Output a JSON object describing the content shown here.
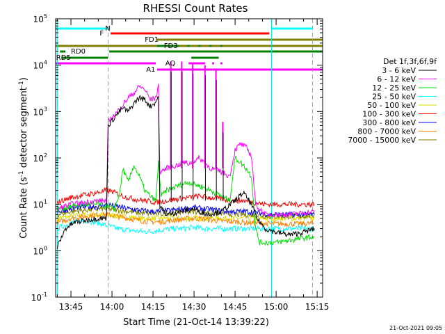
{
  "chart_data": {
    "type": "line",
    "title": "RHESSI Count Rates",
    "xlabel": "Start Time (21-Oct-14 13:39:22)",
    "ylabel_main": "Count Rate (s",
    "ylabel_sup1": "-1",
    "ylabel_mid": " detector segment",
    "ylabel_sup2": "-1",
    "ylabel_end": ")",
    "y_scale": "log",
    "ylim_exp": [
      -1,
      5
    ],
    "y_ticks": [
      {
        "exp": -1,
        "label": "10",
        "sup": "-1"
      },
      {
        "exp": 0,
        "label": "10",
        "sup": "0"
      },
      {
        "exp": 1,
        "label": "10",
        "sup": "1"
      },
      {
        "exp": 2,
        "label": "10",
        "sup": "2"
      },
      {
        "exp": 3,
        "label": "10",
        "sup": "3"
      },
      {
        "exp": 4,
        "label": "10",
        "sup": "4"
      },
      {
        "exp": 5,
        "label": "10",
        "sup": "5"
      }
    ],
    "x_ticks": [
      "13:45",
      "14:00",
      "14:15",
      "14:30",
      "14:45",
      "15:00",
      "15:15"
    ],
    "x_tick_minutes": [
      45,
      60,
      75,
      90,
      105,
      120,
      135
    ],
    "xlim_minutes": [
      39.4,
      137.0
    ],
    "legend_title": "Det 1f,3f,6f,9f",
    "series": [
      {
        "name": "3 - 6 keV",
        "color": "#000000",
        "values": [
          [
            40,
            1.2
          ],
          [
            43,
            3
          ],
          [
            46,
            4
          ],
          [
            50,
            4.5
          ],
          [
            55,
            5
          ],
          [
            58,
            5
          ],
          [
            58.6,
            500
          ],
          [
            62,
            900
          ],
          [
            64,
            1200
          ],
          [
            66,
            1000
          ],
          [
            68,
            1500
          ],
          [
            70,
            2000
          ],
          [
            72,
            1800
          ],
          [
            74,
            1300
          ],
          [
            76,
            1600
          ],
          [
            77,
            2200
          ],
          [
            77.5,
            9
          ],
          [
            80,
            6
          ],
          [
            85,
            7
          ],
          [
            90,
            8
          ],
          [
            95,
            6
          ],
          [
            100,
            7
          ],
          [
            105,
            12
          ],
          [
            108,
            18
          ],
          [
            111,
            10
          ],
          [
            113,
            5
          ],
          [
            116,
            3
          ],
          [
            120,
            2.5
          ],
          [
            125,
            2.2
          ],
          [
            130,
            2.5
          ],
          [
            134,
            3
          ]
        ]
      },
      {
        "name": "6 - 12 keV",
        "color": "#ff00ff",
        "values": [
          [
            40,
            8
          ],
          [
            45,
            10
          ],
          [
            50,
            11
          ],
          [
            55,
            12
          ],
          [
            58,
            12
          ],
          [
            58.6,
            600
          ],
          [
            62,
            1000
          ],
          [
            64,
            1400
          ],
          [
            66,
            2000
          ],
          [
            68,
            2500
          ],
          [
            70,
            3500
          ],
          [
            72,
            3000
          ],
          [
            74,
            1800
          ],
          [
            76,
            2000
          ],
          [
            77,
            3500
          ],
          [
            77.5,
            50
          ],
          [
            80,
            60
          ],
          [
            84,
            70
          ],
          [
            86,
            80
          ],
          [
            88,
            75
          ],
          [
            92,
            100
          ],
          [
            96,
            60
          ],
          [
            100,
            50
          ],
          [
            103,
            40
          ],
          [
            105,
            150
          ],
          [
            107,
            200
          ],
          [
            109,
            170
          ],
          [
            111,
            110
          ],
          [
            112.5,
            10
          ],
          [
            116,
            6
          ],
          [
            125,
            6
          ],
          [
            134,
            7
          ]
        ]
      },
      {
        "name": "12 - 25 keV",
        "color": "#00dd00",
        "values": [
          [
            40,
            8
          ],
          [
            45,
            9
          ],
          [
            50,
            10
          ],
          [
            55,
            10
          ],
          [
            58,
            9
          ],
          [
            61,
            8
          ],
          [
            63,
            20
          ],
          [
            64,
            60
          ],
          [
            65,
            40
          ],
          [
            66,
            30
          ],
          [
            68,
            70
          ],
          [
            70,
            40
          ],
          [
            72,
            20
          ],
          [
            74,
            15
          ],
          [
            76,
            12
          ],
          [
            77,
            80
          ],
          [
            78,
            15
          ],
          [
            80,
            20
          ],
          [
            84,
            25
          ],
          [
            88,
            30
          ],
          [
            92,
            25
          ],
          [
            96,
            20
          ],
          [
            100,
            15
          ],
          [
            103,
            12
          ],
          [
            105,
            100
          ],
          [
            107,
            80
          ],
          [
            109,
            60
          ],
          [
            111,
            40
          ],
          [
            112.5,
            3
          ],
          [
            114,
            1.5
          ],
          [
            120,
            1.5
          ],
          [
            128,
            1.8
          ],
          [
            134,
            2
          ]
        ]
      },
      {
        "name": "25 - 50 keV",
        "color": "#00ffff",
        "values": [
          [
            40,
            3
          ],
          [
            45,
            4
          ],
          [
            50,
            4.5
          ],
          [
            55,
            4
          ],
          [
            58,
            3.5
          ],
          [
            62,
            3
          ],
          [
            66,
            2.8
          ],
          [
            70,
            2.6
          ],
          [
            74,
            2.6
          ],
          [
            78,
            2.8
          ],
          [
            82,
            3
          ],
          [
            86,
            3
          ],
          [
            90,
            3.2
          ],
          [
            94,
            3
          ],
          [
            98,
            3
          ],
          [
            102,
            3
          ],
          [
            106,
            3
          ],
          [
            110,
            3
          ],
          [
            113,
            3
          ],
          [
            118,
            3
          ],
          [
            124,
            3
          ],
          [
            130,
            3
          ],
          [
            134,
            3
          ]
        ]
      },
      {
        "name": "50 - 100 keV",
        "color": "#dddd00",
        "values": [
          [
            40,
            5
          ],
          [
            50,
            6
          ],
          [
            58,
            6
          ],
          [
            70,
            5
          ],
          [
            80,
            5
          ],
          [
            90,
            5
          ],
          [
            100,
            5
          ],
          [
            110,
            5
          ],
          [
            120,
            5
          ],
          [
            134,
            5
          ]
        ]
      },
      {
        "name": "100 - 300 keV",
        "color": "#ff0000",
        "values": [
          [
            40,
            11
          ],
          [
            45,
            14
          ],
          [
            50,
            16
          ],
          [
            55,
            18
          ],
          [
            58,
            20
          ],
          [
            60,
            19
          ],
          [
            64,
            15
          ],
          [
            68,
            13
          ],
          [
            72,
            12
          ],
          [
            76,
            11
          ],
          [
            80,
            12
          ],
          [
            84,
            13
          ],
          [
            88,
            14
          ],
          [
            92,
            15
          ],
          [
            96,
            14
          ],
          [
            100,
            13
          ],
          [
            104,
            12
          ],
          [
            108,
            12
          ],
          [
            112,
            11
          ],
          [
            116,
            10
          ],
          [
            120,
            10
          ],
          [
            126,
            10
          ],
          [
            134,
            10
          ]
        ]
      },
      {
        "name": "300 - 800 keV",
        "color": "#0000ff",
        "values": [
          [
            40,
            7
          ],
          [
            45,
            8
          ],
          [
            50,
            9
          ],
          [
            55,
            9
          ],
          [
            58,
            10
          ],
          [
            62,
            9
          ],
          [
            66,
            8
          ],
          [
            70,
            7.5
          ],
          [
            74,
            7
          ],
          [
            78,
            7
          ],
          [
            82,
            7.5
          ],
          [
            86,
            8
          ],
          [
            90,
            8.5
          ],
          [
            94,
            8
          ],
          [
            98,
            7.5
          ],
          [
            102,
            7
          ],
          [
            106,
            7
          ],
          [
            110,
            7
          ],
          [
            114,
            6.5
          ],
          [
            118,
            6
          ],
          [
            124,
            6
          ],
          [
            130,
            6
          ],
          [
            134,
            6
          ]
        ]
      },
      {
        "name": "800 - 7000 keV",
        "color": "#ff8000",
        "values": [
          [
            40,
            4
          ],
          [
            45,
            5
          ],
          [
            50,
            5.5
          ],
          [
            55,
            6
          ],
          [
            58,
            6
          ],
          [
            62,
            5.5
          ],
          [
            66,
            5
          ],
          [
            70,
            4.5
          ],
          [
            74,
            4.2
          ],
          [
            78,
            4.2
          ],
          [
            82,
            4.5
          ],
          [
            86,
            4.8
          ],
          [
            90,
            5
          ],
          [
            94,
            4.8
          ],
          [
            98,
            4.5
          ],
          [
            102,
            4.3
          ],
          [
            106,
            4.2
          ],
          [
            110,
            4
          ],
          [
            114,
            3.9
          ],
          [
            118,
            3.8
          ],
          [
            124,
            3.8
          ],
          [
            130,
            3.8
          ],
          [
            134,
            3.9
          ]
        ]
      },
      {
        "name": "7000 - 15000 keV",
        "color": "#808000",
        "values": [
          [
            40,
            6
          ],
          [
            45,
            7
          ],
          [
            50,
            7.5
          ],
          [
            55,
            8
          ],
          [
            58,
            8
          ],
          [
            62,
            7.5
          ],
          [
            66,
            7
          ],
          [
            70,
            6.5
          ],
          [
            74,
            6.3
          ],
          [
            78,
            6.3
          ],
          [
            82,
            6.5
          ],
          [
            86,
            7
          ],
          [
            90,
            7
          ],
          [
            94,
            6.8
          ],
          [
            98,
            6.5
          ],
          [
            102,
            6.3
          ],
          [
            106,
            6
          ],
          [
            110,
            6
          ],
          [
            114,
            5.8
          ],
          [
            118,
            5.5
          ],
          [
            124,
            5.5
          ],
          [
            130,
            5.6
          ],
          [
            134,
            5.8
          ]
        ]
      }
    ],
    "spikes": [
      {
        "t": 81.5,
        "peak": 12000,
        "color": "#ff00ff"
      },
      {
        "t": 85.5,
        "peak": 12000,
        "color": "#ff00ff"
      },
      {
        "t": 89.5,
        "peak": 11000,
        "color": "#ff00ff"
      },
      {
        "t": 94,
        "peak": 10000,
        "color": "#ff00ff"
      },
      {
        "t": 98,
        "peak": 8000,
        "color": "#ff00ff"
      },
      {
        "t": 100.5,
        "peak": 600,
        "color": "#ff00ff"
      }
    ],
    "vlines": [
      {
        "t": 40.0,
        "style": "solid"
      },
      {
        "t": 58.6,
        "style": "dashed"
      },
      {
        "t": 118.3,
        "style": "solid"
      },
      {
        "t": 133.3,
        "style": "dashed"
      }
    ],
    "flag_bars": [
      {
        "label": "N",
        "color": "#00ffff",
        "segments": [
          [
            39.4,
            58.6
          ],
          [
            118.3,
            133.3
          ]
        ],
        "level": 41,
        "label_t": 57.5,
        "label_color": "#00ffff"
      },
      {
        "label": "F",
        "color": "#ff0000",
        "segments": [
          [
            59.5,
            117.5
          ]
        ],
        "level": 48,
        "label_t": 55.5,
        "label_color": "#ff0000"
      },
      {
        "label": "FD1",
        "color": "#808000",
        "segments": [
          [
            76.5,
            137
          ]
        ],
        "level": 57,
        "label_t": 72,
        "label_color": "#808000"
      },
      {
        "label": "",
        "color": "#808000",
        "segments": [
          [
            39.4,
            137
          ]
        ],
        "level": 66,
        "label_t": null,
        "label_color": "#808000"
      },
      {
        "label": "FD3",
        "color": "#008000",
        "segments": [
          [
            76.5,
            84.5
          ]
        ],
        "level": 66,
        "label_t": 79,
        "label_color": "#008000",
        "dots": [
          88,
          92,
          96,
          100
        ]
      },
      {
        "label": "RD0",
        "color": "#008000",
        "segments": [
          [
            41,
            43
          ],
          [
            59,
            137
          ]
        ],
        "level": 74,
        "label_t": 45,
        "label_color": "#008000"
      },
      {
        "label": "RD5",
        "color": "#008000",
        "segments": [
          [
            41.5,
            58.5
          ],
          [
            89,
            99
          ]
        ],
        "level": 83,
        "label_t": 39.6,
        "label_color": "#008000"
      },
      {
        "label": "AQ",
        "color": "#ff00ff",
        "segments": [
          [
            39.4,
            76
          ],
          [
            88,
            94
          ]
        ],
        "level": 91,
        "label_t": 79.5,
        "label_color": "#ff00ff",
        "dots": [
          97,
          100
        ]
      },
      {
        "label": "A1",
        "color": "#ff00ff",
        "segments": [
          [
            76.5,
            137
          ]
        ],
        "level": 100,
        "label_t": 72.5,
        "label_color": "#ff00ff"
      }
    ]
  },
  "footer": {
    "timestamp": "21-Oct-2021 09:05"
  }
}
